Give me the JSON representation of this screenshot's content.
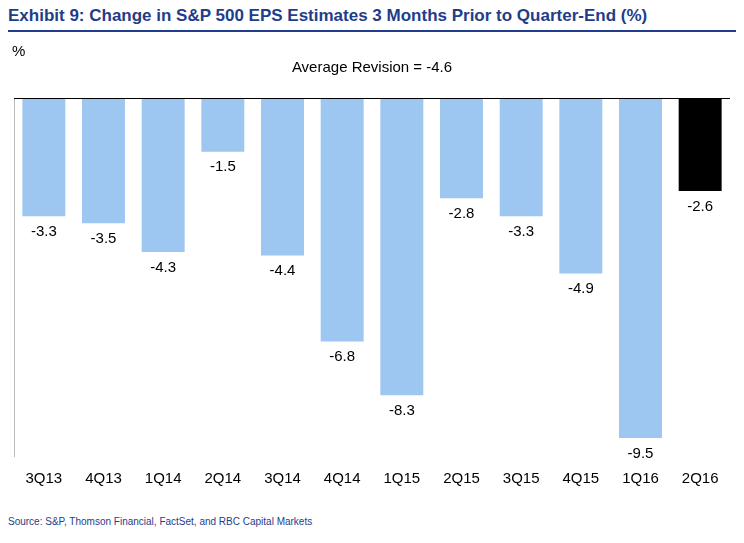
{
  "chart_data": {
    "type": "bar",
    "title": "Exhibit 9: Change in S&P 500 EPS Estimates 3 Months Prior to Quarter-End (%)",
    "ylabel": "%",
    "annotation": "Average Revision = -4.6",
    "source": "Source: S&P, Thomson Financial, FactSet, and RBC Capital Markets",
    "categories": [
      "3Q13",
      "4Q13",
      "1Q14",
      "2Q14",
      "3Q14",
      "4Q14",
      "1Q15",
      "2Q15",
      "3Q15",
      "4Q15",
      "1Q16",
      "2Q16"
    ],
    "values": [
      -3.3,
      -3.5,
      -4.3,
      -1.5,
      -4.4,
      -6.8,
      -8.3,
      -2.8,
      -3.3,
      -4.9,
      -9.5,
      -2.6
    ],
    "colors": [
      "#9dc6f0",
      "#9dc6f0",
      "#9dc6f0",
      "#9dc6f0",
      "#9dc6f0",
      "#9dc6f0",
      "#9dc6f0",
      "#9dc6f0",
      "#9dc6f0",
      "#9dc6f0",
      "#9dc6f0",
      "#000000"
    ],
    "ylim": [
      -10,
      0
    ],
    "grid": false,
    "data_labels": true,
    "tick_labels": "x"
  }
}
